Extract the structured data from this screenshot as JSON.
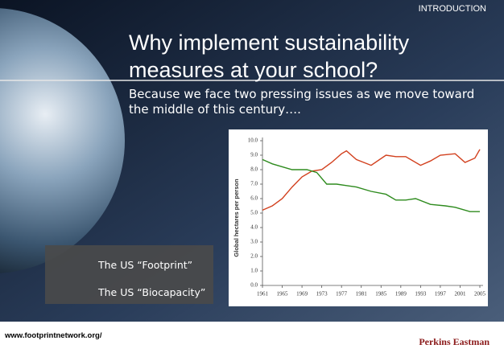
{
  "section": "INTRODUCTION",
  "title": "Why implement sustainability measures at your school?",
  "subtitle": "Because we face two pressing issues as we move toward the middle of this century….",
  "footer": {
    "url": "www.footprintnetwork.org/",
    "brand": "Perkins Eastman"
  },
  "chart_data": {
    "type": "line",
    "ylabel": "Global hectares per person",
    "xlim": [
      1961,
      2005
    ],
    "xticks": [
      1961,
      1965,
      1969,
      1973,
      1977,
      1981,
      1985,
      1989,
      1993,
      1997,
      2001,
      2005
    ],
    "ylim": [
      0,
      10
    ],
    "yticks": [
      {
        "value": 0,
        "label": "0.0"
      },
      {
        "value": 1,
        "label": "1.0"
      },
      {
        "value": 2,
        "label": "2.0"
      },
      {
        "value": 3,
        "label": "3.0"
      },
      {
        "value": 4,
        "label": "4.0"
      },
      {
        "value": 5,
        "label": "5.0"
      },
      {
        "value": 6,
        "label": "6.0"
      },
      {
        "value": 7,
        "label": "7.0"
      },
      {
        "value": 8,
        "label": "8.0"
      },
      {
        "value": 9,
        "label": "9.0"
      },
      {
        "value": 10,
        "label": "10.0"
      }
    ],
    "series": [
      {
        "name": "The US “Footprint”",
        "color": "#d2401e",
        "x": [
          1961,
          1963,
          1965,
          1967,
          1969,
          1971,
          1973,
          1975,
          1977,
          1978,
          1980,
          1983,
          1986,
          1988,
          1990,
          1993,
          1995,
          1997,
          2000,
          2002,
          2004,
          2005
        ],
        "values": [
          5.2,
          5.5,
          6.0,
          6.8,
          7.5,
          7.9,
          8.0,
          8.5,
          9.1,
          9.3,
          8.7,
          8.3,
          9.0,
          8.9,
          8.9,
          8.3,
          8.6,
          9.0,
          9.1,
          8.5,
          8.8,
          9.4
        ]
      },
      {
        "name": "The US “Biocapacity”",
        "color": "#2e8b1e",
        "x": [
          1961,
          1963,
          1965,
          1967,
          1970,
          1972,
          1974,
          1976,
          1978,
          1980,
          1983,
          1986,
          1988,
          1990,
          1992,
          1995,
          1998,
          2000,
          2003,
          2005
        ],
        "values": [
          8.7,
          8.4,
          8.2,
          8.0,
          8.0,
          7.8,
          7.0,
          7.0,
          6.9,
          6.8,
          6.5,
          6.3,
          5.9,
          5.9,
          6.0,
          5.6,
          5.5,
          5.4,
          5.1,
          5.1
        ]
      }
    ]
  }
}
